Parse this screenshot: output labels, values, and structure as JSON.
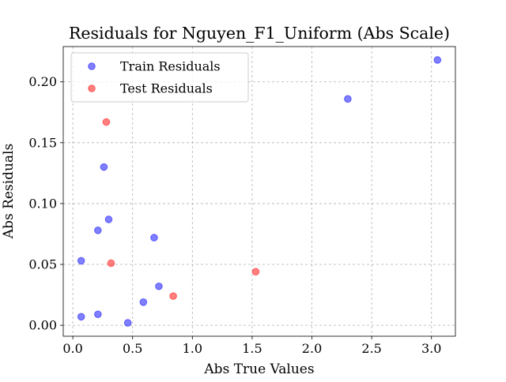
{
  "chart_data": {
    "type": "scatter",
    "title": "Residuals for Nguyen_F1_Uniform (Abs Scale)",
    "xlabel": "Abs True Values",
    "ylabel": "Abs Residuals",
    "xlim": [
      -0.08,
      3.2
    ],
    "ylim": [
      -0.009,
      0.229
    ],
    "xticks": [
      0.0,
      0.5,
      1.0,
      1.5,
      2.0,
      2.5,
      3.0
    ],
    "xtick_labels": [
      "0.0",
      "0.5",
      "1.0",
      "1.5",
      "2.0",
      "2.5",
      "3.0"
    ],
    "yticks": [
      0.0,
      0.05,
      0.1,
      0.15,
      0.2
    ],
    "ytick_labels": [
      "0.00",
      "0.05",
      "0.10",
      "0.15",
      "0.20"
    ],
    "grid": true,
    "legend_position": "top-left",
    "series": [
      {
        "name": "Train Residuals",
        "color": "#0000ff",
        "x": [
          0.07,
          0.07,
          0.21,
          0.21,
          0.26,
          0.3,
          0.46,
          0.59,
          0.68,
          0.72,
          2.3,
          3.05
        ],
        "y": [
          0.007,
          0.053,
          0.009,
          0.078,
          0.13,
          0.087,
          0.002,
          0.019,
          0.072,
          0.032,
          0.186,
          0.218
        ]
      },
      {
        "name": "Test Residuals",
        "color": "#ff0000",
        "x": [
          0.28,
          0.32,
          0.84,
          1.53
        ],
        "y": [
          0.167,
          0.051,
          0.024,
          0.044
        ]
      }
    ]
  }
}
